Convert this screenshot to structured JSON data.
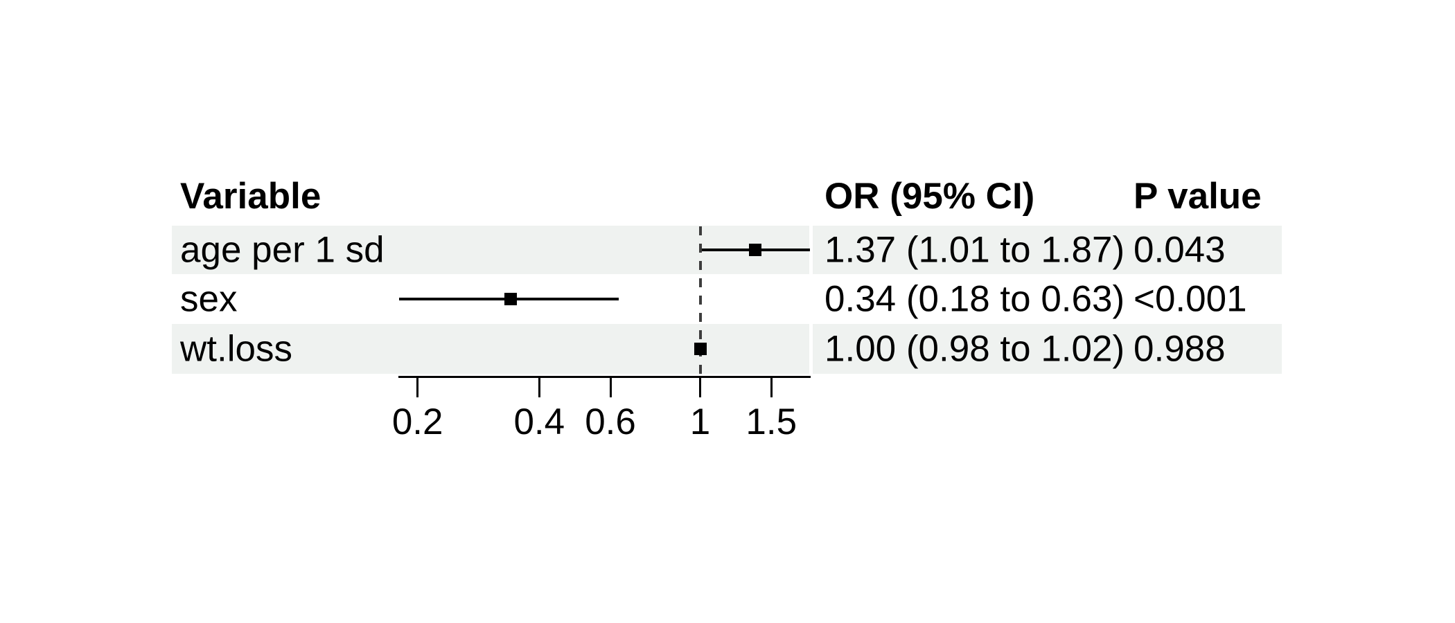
{
  "figure": {
    "headers": {
      "variable": "Variable",
      "or_ci": "OR (95% CI)",
      "p_value": "P value"
    },
    "rows": [
      {
        "variable": "age per 1 sd",
        "or_ci": "1.37 (1.01 to 1.87)",
        "p_value": "0.043"
      },
      {
        "variable": "sex",
        "or_ci": "0.34 (0.18 to 0.63)",
        "p_value": "<0.001"
      },
      {
        "variable": "wt.loss",
        "or_ci": "1.00 (0.98 to 1.02)",
        "p_value": "0.988"
      }
    ]
  },
  "colors": {
    "background": "#FFFFFF",
    "row_shade": "#EFF2F0",
    "text": "#000000",
    "axis_line": "#000000",
    "reference_line": "#3D3D3D",
    "marker": "#000000"
  },
  "chart_data": {
    "type": "forest",
    "x_scale": "log",
    "columns": [
      "Variable",
      "OR (95% CI)",
      "P value"
    ],
    "x_ticks": [
      "0.2",
      "0.4",
      "0.6",
      "1",
      "1.5"
    ],
    "x_tick_values": [
      0.2,
      0.4,
      0.6,
      1,
      1.5
    ],
    "xlim": [
      0.18,
      1.87
    ],
    "reference_line": 1,
    "shaded_rows": [
      0,
      2
    ],
    "rows": [
      {
        "label": "age per 1 sd",
        "or": 1.37,
        "ci_low": 1.01,
        "ci_high": 1.87,
        "p_value": "0.043"
      },
      {
        "label": "sex",
        "or": 0.34,
        "ci_low": 0.18,
        "ci_high": 0.63,
        "p_value": "<0.001"
      },
      {
        "label": "wt.loss",
        "or": 1.0,
        "ci_low": 0.98,
        "ci_high": 1.02,
        "p_value": "0.988"
      }
    ]
  }
}
